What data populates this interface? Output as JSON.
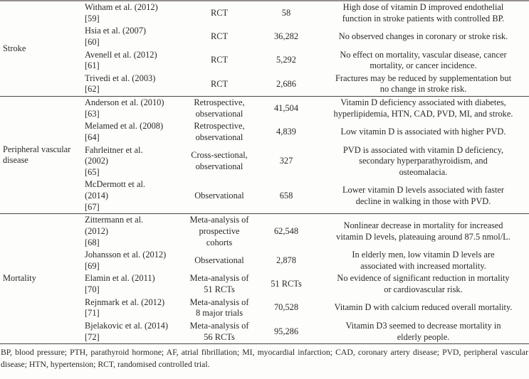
{
  "footnote": "BP, blood pressure; PTH, parathyroid hormone; AF, atrial fibrillation; MI, myocardial infarction; CAD, coronary artery disease; PVD, peripheral vascular disease; HTN, hypertension; RCT, randomised controlled trial.",
  "table": {
    "sections": [
      {
        "category": "Stroke",
        "rows": [
          {
            "study_lines": [
              "Witham et al. (2012)",
              "[59]"
            ],
            "type_lines": [
              "RCT"
            ],
            "n": "58",
            "finding_lines": [
              "High dose of vitamin D improved endothelial",
              "function in stroke patients with controlled BP."
            ]
          },
          {
            "study_lines": [
              "Hsia et al. (2007)",
              "[60]"
            ],
            "type_lines": [
              "RCT"
            ],
            "n": "36,282",
            "finding_lines": [
              "No observed changes in coronary or stroke risk."
            ]
          },
          {
            "study_lines": [
              "Avenell et al. (2012)",
              "[61]"
            ],
            "type_lines": [
              "RCT"
            ],
            "n": "5,292",
            "finding_lines": [
              "No effect on mortality, vascular disease, cancer",
              "mortality, or cancer incidence."
            ]
          },
          {
            "study_lines": [
              "Trivedi et al. (2003)",
              "[62]"
            ],
            "type_lines": [
              "RCT"
            ],
            "n": "2,686",
            "finding_lines": [
              "Fractures may be reduced by supplementation but",
              "no change in stroke risk."
            ]
          }
        ]
      },
      {
        "category": "Peripheral vascular disease",
        "rows": [
          {
            "study_lines": [
              "Anderson et al. (2010)",
              "[63]"
            ],
            "type_lines": [
              "Retrospective,",
              "observational"
            ],
            "n": "41,504",
            "finding_lines": [
              "Vitamin D deficiency associated with diabetes,",
              "hyperlipidemia, HTN, CAD, PVD, MI, and stroke."
            ]
          },
          {
            "study_lines": [
              "Melamed et al. (2008)",
              "[64]"
            ],
            "type_lines": [
              "Retrospective,",
              "observational"
            ],
            "n": "4,839",
            "finding_lines": [
              "Low vitamin D is associated with higher PVD."
            ]
          },
          {
            "study_lines": [
              "Fahrleitner et al.",
              "(2002)",
              "[65]"
            ],
            "type_lines": [
              "Cross-sectional,",
              "observational"
            ],
            "n": "327",
            "finding_lines": [
              "PVD is associated with vitamin D deficiency,",
              "secondary hyperparathyroidism, and",
              "osteomalacia."
            ]
          },
          {
            "study_lines": [
              "McDermott et al.",
              "(2014)",
              "[67]"
            ],
            "type_lines": [
              "Observational"
            ],
            "n": "658",
            "finding_lines": [
              "Lower vitamin D levels associated with faster",
              "decline in walking in those with PVD."
            ]
          }
        ]
      },
      {
        "category": "Mortality",
        "rows": [
          {
            "study_lines": [
              "Zittermann et al.",
              "(2012)",
              "[68]"
            ],
            "type_lines": [
              "Meta-analysis of",
              "prospective",
              "cohorts"
            ],
            "n": "62,548",
            "finding_lines": [
              "Nonlinear decrease in mortality for increased",
              "vitamin D levels, plateauing around 87.5 nmol/L."
            ]
          },
          {
            "study_lines": [
              "Johansson et al. (2012)",
              "[69]"
            ],
            "type_lines": [
              "Observational"
            ],
            "n": "2,878",
            "finding_lines": [
              "In elderly men, low vitamin D levels are",
              "associated with increased mortality."
            ]
          },
          {
            "study_lines": [
              "Elamin et al. (2011)",
              "[70]"
            ],
            "type_lines": [
              "Meta-analysis of",
              "51 RCTs"
            ],
            "n": "51 RCTs",
            "finding_lines": [
              "No evidence of significant reduction in mortality",
              "or cardiovascular risk."
            ]
          },
          {
            "study_lines": [
              "Rejnmark et al. (2012)",
              "[71]"
            ],
            "type_lines": [
              "Meta-analysis of",
              "8 major trials"
            ],
            "n": "70,528",
            "finding_lines": [
              "Vitamin D with calcium reduced overall mortality."
            ]
          },
          {
            "study_lines": [
              "Bjelakovic et al. (2014)",
              "[72]"
            ],
            "type_lines": [
              "Meta-analysis of",
              "56 RCTs"
            ],
            "n": "95,286",
            "finding_lines": [
              "Vitamin D3 seemed to decrease mortality in",
              "elderly people."
            ]
          }
        ]
      }
    ]
  }
}
